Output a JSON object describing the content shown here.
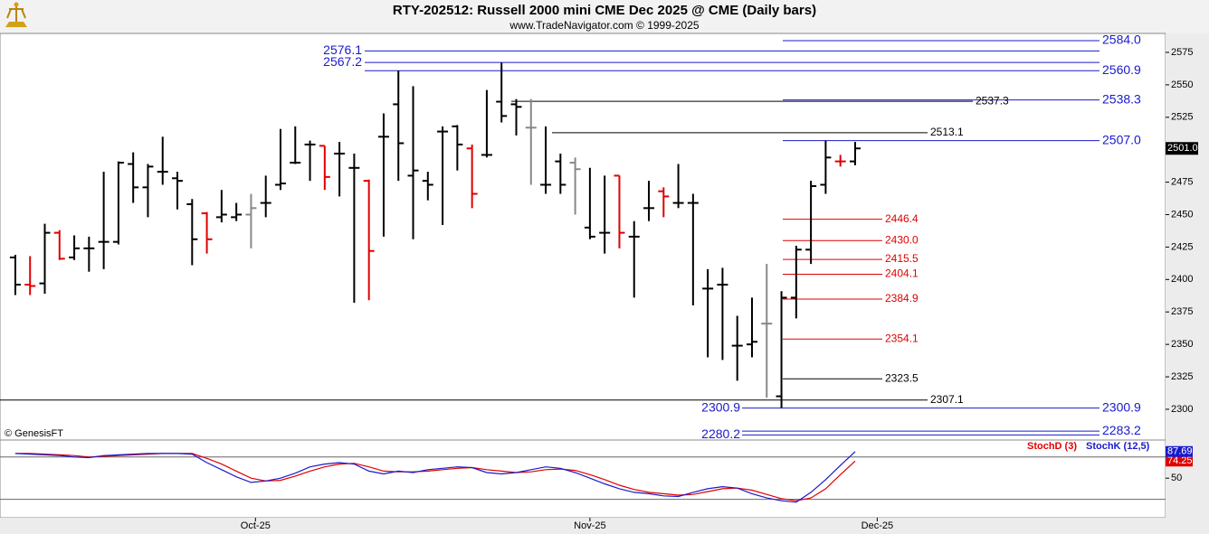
{
  "chart_data": [
    {
      "type": "ohlc",
      "title": "RTY-202512:  Russell 2000 mini CME Dec 2025 @ CME  (Daily bars)",
      "subtitle": "www.TradeNavigator.com © 1999-2025",
      "annotation": "© GenesisFT",
      "xlim": [
        -1.04,
        78.07
      ],
      "ylim": [
        2276.3,
        2589.6
      ],
      "yticks": [
        2300,
        2325,
        2350,
        2375,
        2400,
        2425,
        2450,
        2475,
        2500,
        2525,
        2550,
        2575
      ],
      "last_price": {
        "value": 2501,
        "label": "2501.0"
      },
      "series": [
        {
          "open": [
            2417,
            2396,
            2397,
            2436,
            2417,
            2424,
            2429,
            2429,
            2489,
            2471,
            2483,
            2478,
            2458,
            2451,
            2448,
            2448,
            2450,
            2459,
            2473,
            2490,
            2504,
            2503,
            2497,
            2486,
            2476,
            2510,
            2535,
            2480,
            2476,
            2514,
            2518,
            2501,
            2496,
            2537,
            2535,
            2517,
            2473,
            2491,
            2490,
            2440,
            2436,
            2480,
            2433,
            2455,
            2468,
            2459,
            2459,
            2393,
            2396,
            2349,
            2350,
            2366,
            2310,
            2386,
            2423,
            2473,
            2491,
            2491
          ],
          "high": [
            2419,
            2418,
            2443,
            2438,
            2434,
            2433,
            2483,
            2491,
            2498,
            2489,
            2510,
            2483,
            2462,
            2452,
            2469,
            2459,
            2466,
            2480,
            2516,
            2518,
            2507,
            2503,
            2506,
            2497,
            2477,
            2528,
            2561,
            2549,
            2483,
            2518,
            2519,
            2504,
            2546,
            2567,
            2539,
            2539,
            2518,
            2497,
            2494,
            2486,
            2480,
            2480,
            2445,
            2476,
            2471,
            2489,
            2466,
            2408,
            2409,
            2372,
            2386,
            2412,
            2391,
            2426,
            2476,
            2507,
            2496,
            2506
          ],
          "low": [
            2388,
            2388,
            2389,
            2415,
            2415,
            2406,
            2408,
            2427,
            2459,
            2448,
            2473,
            2454,
            2411,
            2420,
            2444,
            2445,
            2424,
            2448,
            2469,
            2489,
            2476,
            2469,
            2464,
            2382,
            2384,
            2433,
            2476,
            2431,
            2461,
            2442,
            2484,
            2455,
            2494,
            2521,
            2511,
            2473,
            2466,
            2466,
            2450,
            2431,
            2420,
            2424,
            2386,
            2445,
            2448,
            2455,
            2380,
            2340,
            2338,
            2322,
            2340,
            2309,
            2301,
            2370,
            2412,
            2466,
            2487,
            2488
          ],
          "close": [
            2396,
            2395,
            2436,
            2416,
            2424,
            2424,
            2429,
            2490,
            2471,
            2487,
            2483,
            2476,
            2431,
            2431,
            2450,
            2450,
            2455,
            2459,
            2474,
            2490,
            2504,
            2479,
            2497,
            2486,
            2422,
            2510,
            2505,
            2484,
            2473,
            2514,
            2504,
            2466,
            2496,
            2526,
            2533,
            2517,
            2473,
            2473,
            2485,
            2433,
            2436,
            2436,
            2433,
            2455,
            2464,
            2459,
            2459,
            2393,
            2396,
            2349,
            2352,
            2366,
            2386,
            2423,
            2472,
            2494,
            2491,
            2501
          ],
          "colors": [
            "#000",
            "#e00000",
            "#000",
            "#e00000",
            "#000",
            "#000",
            "#000",
            "#000",
            "#000",
            "#000",
            "#000",
            "#000",
            "#000",
            "#e00000",
            "#000",
            "#000",
            "#888",
            "#000",
            "#000",
            "#000",
            "#000",
            "#e00000",
            "#000",
            "#000",
            "#e00000",
            "#000",
            "#000",
            "#000",
            "#000",
            "#000",
            "#000",
            "#e00000",
            "#000",
            "#000",
            "#000",
            "#888",
            "#000",
            "#000",
            "#888",
            "#000",
            "#000",
            "#e00000",
            "#000",
            "#000",
            "#e00000",
            "#000",
            "#000",
            "#000",
            "#000",
            "#000",
            "#000",
            "#888",
            "#000",
            "#000",
            "#000",
            "#000",
            "#e00000",
            "#000"
          ]
        }
      ],
      "levels": [
        {
          "value": 2584.0,
          "label": "2584.0",
          "color": "#1a1acc"
        },
        {
          "value": 2576.1,
          "label": "2576.1",
          "color": "#1a1acc"
        },
        {
          "value": 2567.2,
          "label": "2567.2",
          "color": "#1a1acc"
        },
        {
          "value": 2560.9,
          "label": "2560.9",
          "color": "#1a1acc"
        },
        {
          "value": 2538.3,
          "label": "2538.3",
          "color": "#1a1acc"
        },
        {
          "value": 2537.3,
          "color": "#000"
        },
        {
          "value": 2513.1,
          "color": "#000"
        },
        {
          "value": 2507.0,
          "label": "2507.0",
          "color": "#1a1acc"
        },
        {
          "value": 2446.4,
          "color": "#e00000"
        },
        {
          "value": 2430.0,
          "label": "2430.0",
          "color": "#e00000"
        },
        {
          "value": 2415.5,
          "color": "#e00000"
        },
        {
          "value": 2404.1,
          "color": "#e00000"
        },
        {
          "value": 2384.9,
          "color": "#e00000"
        },
        {
          "value": 2354.1,
          "color": "#e00000"
        },
        {
          "value": 2323.5,
          "color": "#000"
        },
        {
          "value": 2307.1,
          "color": "#000"
        },
        {
          "value": 2300.9,
          "color": "#1a1acc"
        },
        {
          "value": 2283.2,
          "color": "#1a1acc"
        },
        {
          "value": 2280.2,
          "color": "#1a1acc"
        }
      ]
    },
    {
      "type": "line",
      "xlim": [
        -1.04,
        78.07
      ],
      "ylim": [
        -6,
        104
      ],
      "yticks": [
        50
      ],
      "hlines": [
        20,
        80
      ],
      "xticks": [
        {
          "value": 16.3,
          "label": "Oct-25"
        },
        {
          "value": 39.0,
          "label": "Nov-25"
        },
        {
          "value": 58.5,
          "label": "Dec-25"
        }
      ],
      "series": [
        {
          "name": "StochD (3)",
          "color": "#e00000",
          "values": [
            85,
            85,
            84,
            83,
            82,
            80,
            81,
            82,
            83,
            84,
            85,
            85,
            85,
            78,
            70,
            60,
            50,
            46,
            47,
            53,
            60,
            66,
            70,
            71,
            66,
            60,
            59,
            59,
            60,
            62,
            64,
            65,
            62,
            60,
            58,
            59,
            62,
            63,
            61,
            55,
            48,
            40,
            34,
            30,
            28,
            26,
            27,
            31,
            35,
            36,
            33,
            27,
            21,
            18,
            22,
            35,
            55,
            74.25
          ]
        },
        {
          "name": "StochK (12,5)",
          "color": "#1a1acc",
          "values": [
            85,
            84,
            83,
            82,
            80,
            79,
            82,
            83,
            84,
            85,
            85,
            85,
            84,
            72,
            62,
            52,
            44,
            46,
            50,
            57,
            66,
            70,
            72,
            70,
            60,
            56,
            60,
            58,
            62,
            64,
            66,
            65,
            58,
            56,
            58,
            62,
            66,
            64,
            58,
            50,
            42,
            35,
            30,
            28,
            25,
            24,
            30,
            35,
            38,
            36,
            28,
            22,
            18,
            16,
            30,
            48,
            68,
            87.69
          ]
        }
      ]
    }
  ]
}
